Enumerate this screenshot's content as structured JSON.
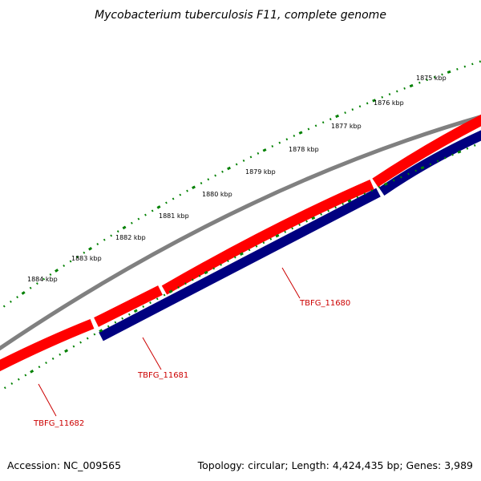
{
  "title": "Mycobacterium tuberculosis F11, complete genome",
  "scale": {
    "labels": [
      "1875 kbp",
      "1876 kbp",
      "1877 kbp",
      "1878 kbp",
      "1879 kbp",
      "1880 kbp",
      "1881 kbp",
      "1882 kbp",
      "1883 kbp",
      "1884 kbp"
    ]
  },
  "genes": {
    "forward_strand_label": "",
    "labels": [
      "TBFG_11680",
      "TBFG_11681",
      "TBFG_11682"
    ]
  },
  "footer": {
    "accession": "Accession: NC_009565",
    "info": "Topology: circular; Length: 4,424,435 bp; Genes: 3,989"
  },
  "colors": {
    "backbone": "#808080",
    "forward_gene": "#ff0000",
    "reverse_gene": "#000080",
    "ticks": "#008000",
    "gene_label": "#cc0000"
  }
}
